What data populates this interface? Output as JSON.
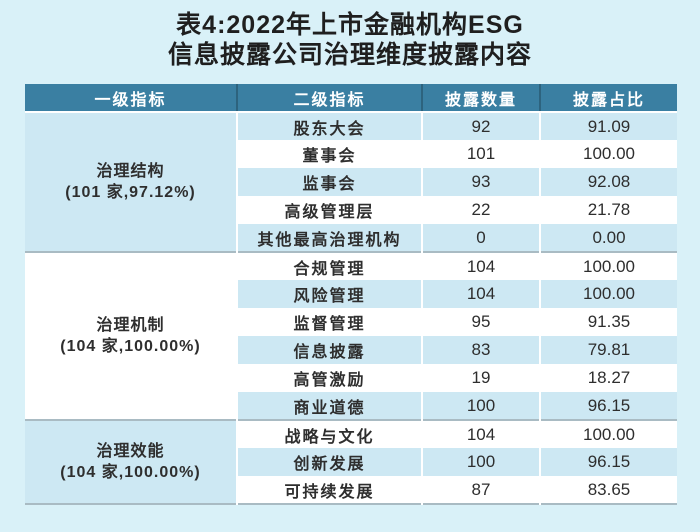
{
  "title_lines": [
    "表4:2022年上市金融机构ESG",
    "信息披露公司治理维度披露内容"
  ],
  "colors": {
    "page_bg": "#d9f1f8",
    "header_bg": "#3a7fa2",
    "header_text": "#ffffff",
    "row_bg": "#ffffff",
    "row_alt_bg": "#cde8f3",
    "group_divider": "#a9bbc3",
    "text": "#2e2e2e"
  },
  "chart_data": {
    "type": "table",
    "title": "表4:2022年上市金融机构ESG 信息披露公司治理维度披露内容",
    "columns": [
      "一级指标",
      "二级指标",
      "披露数量",
      "披露占比"
    ],
    "groups": [
      {
        "primary_indicator": "治理结构",
        "primary_detail": "(101 家,97.12%)",
        "rows": [
          {
            "secondary_indicator": "股东大会",
            "disclosure_count": 92,
            "disclosure_ratio": "91.09"
          },
          {
            "secondary_indicator": "董事会",
            "disclosure_count": 101,
            "disclosure_ratio": "100.00"
          },
          {
            "secondary_indicator": "监事会",
            "disclosure_count": 93,
            "disclosure_ratio": "92.08"
          },
          {
            "secondary_indicator": "高级管理层",
            "disclosure_count": 22,
            "disclosure_ratio": "21.78"
          },
          {
            "secondary_indicator": "其他最高治理机构",
            "disclosure_count": 0,
            "disclosure_ratio": "0.00"
          }
        ]
      },
      {
        "primary_indicator": "治理机制",
        "primary_detail": "(104 家,100.00%)",
        "rows": [
          {
            "secondary_indicator": "合规管理",
            "disclosure_count": 104,
            "disclosure_ratio": "100.00"
          },
          {
            "secondary_indicator": "风险管理",
            "disclosure_count": 104,
            "disclosure_ratio": "100.00"
          },
          {
            "secondary_indicator": "监督管理",
            "disclosure_count": 95,
            "disclosure_ratio": "91.35"
          },
          {
            "secondary_indicator": "信息披露",
            "disclosure_count": 83,
            "disclosure_ratio": "79.81"
          },
          {
            "secondary_indicator": "高管激励",
            "disclosure_count": 19,
            "disclosure_ratio": "18.27"
          },
          {
            "secondary_indicator": "商业道德",
            "disclosure_count": 100,
            "disclosure_ratio": "96.15"
          }
        ]
      },
      {
        "primary_indicator": "治理效能",
        "primary_detail": "(104 家,100.00%)",
        "rows": [
          {
            "secondary_indicator": "战略与文化",
            "disclosure_count": 104,
            "disclosure_ratio": "100.00"
          },
          {
            "secondary_indicator": "创新发展",
            "disclosure_count": 100,
            "disclosure_ratio": "96.15"
          },
          {
            "secondary_indicator": "可持续发展",
            "disclosure_count": 87,
            "disclosure_ratio": "83.65"
          }
        ]
      }
    ]
  }
}
